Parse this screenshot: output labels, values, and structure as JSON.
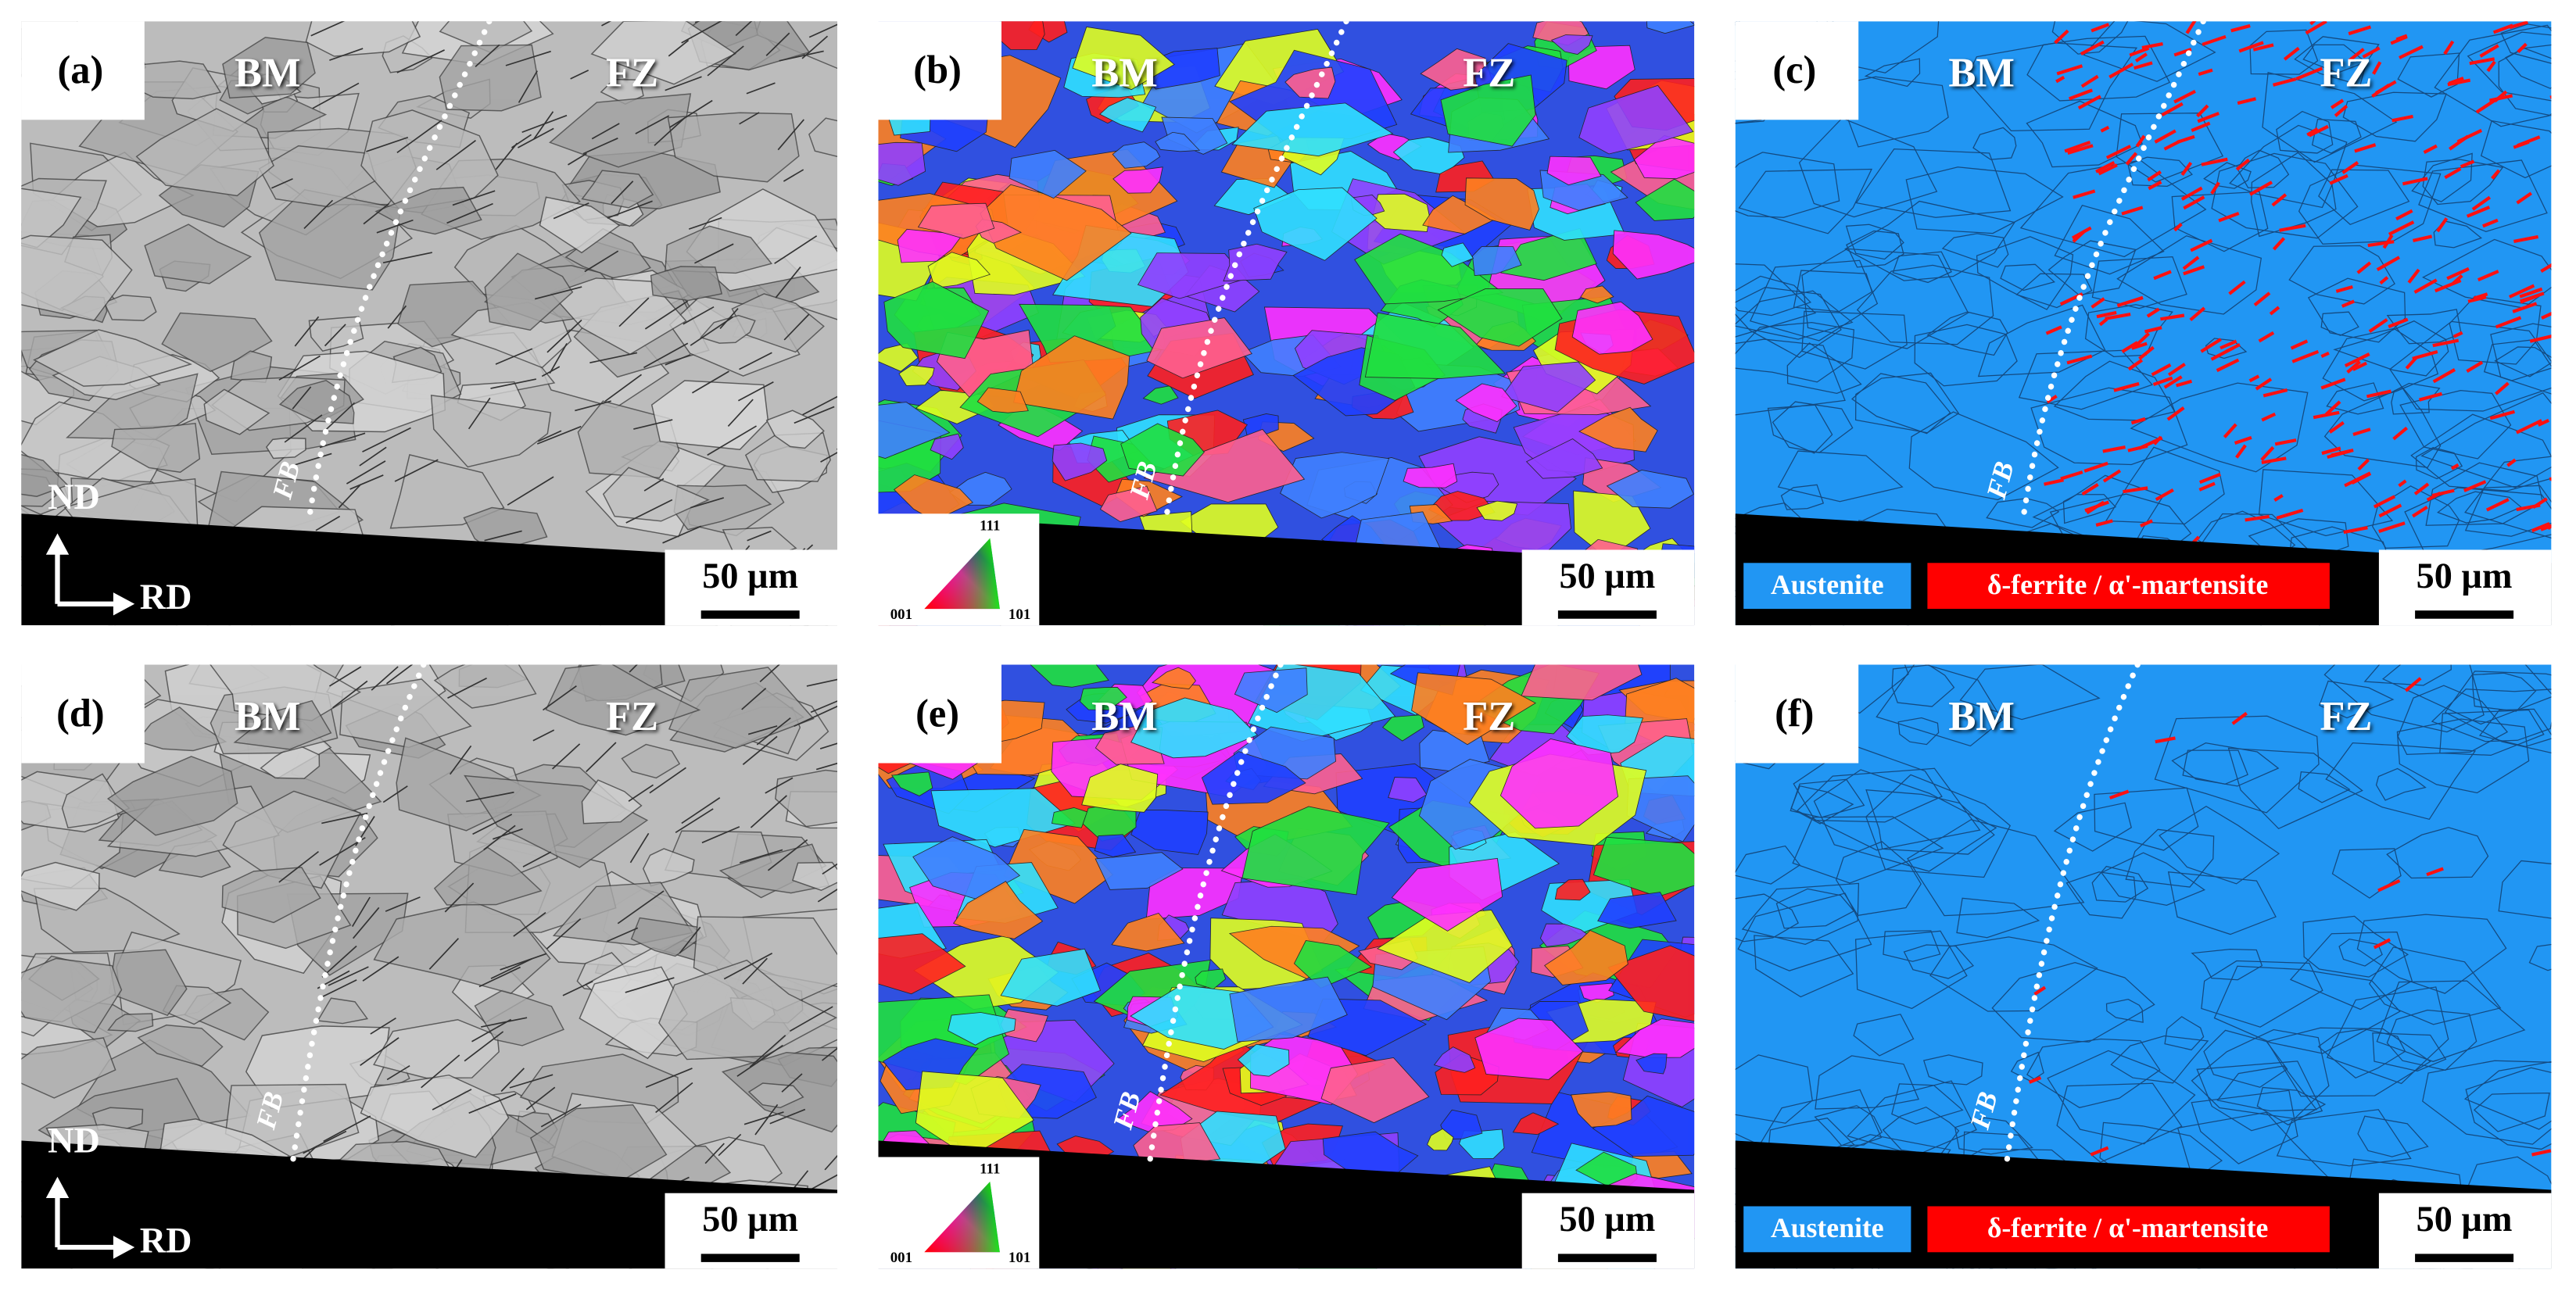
{
  "panels": [
    {
      "label": "(a)",
      "left_zone": "BM",
      "right_zone": "FZ",
      "boundary": "FB",
      "scale_bar": "50 µm",
      "axes": {
        "vertical": "ND",
        "horizontal": "RD"
      }
    },
    {
      "label": "(b)",
      "left_zone": "BM",
      "right_zone": "FZ",
      "boundary": "FB",
      "scale_bar": "50 µm",
      "ipf": {
        "top": "111",
        "left": "001",
        "right": "101"
      }
    },
    {
      "label": "(c)",
      "left_zone": "BM",
      "right_zone": "FZ",
      "boundary": "FB",
      "scale_bar": "50 µm",
      "legend": [
        "Austenite",
        "δ-ferrite / α'-martensite"
      ]
    },
    {
      "label": "(d)",
      "left_zone": "BM",
      "right_zone": "FZ",
      "boundary": "FB",
      "scale_bar": "50 µm",
      "axes": {
        "vertical": "ND",
        "horizontal": "RD"
      }
    },
    {
      "label": "(e)",
      "left_zone": "BM",
      "right_zone": "FZ",
      "boundary": "FB",
      "scale_bar": "50 µm",
      "ipf": {
        "top": "111",
        "left": "001",
        "right": "101"
      }
    },
    {
      "label": "(f)",
      "left_zone": "BM",
      "right_zone": "FZ",
      "boundary": "FB",
      "scale_bar": "50 µm",
      "legend": [
        "Austenite",
        "δ-ferrite / α'-martensite"
      ]
    }
  ]
}
